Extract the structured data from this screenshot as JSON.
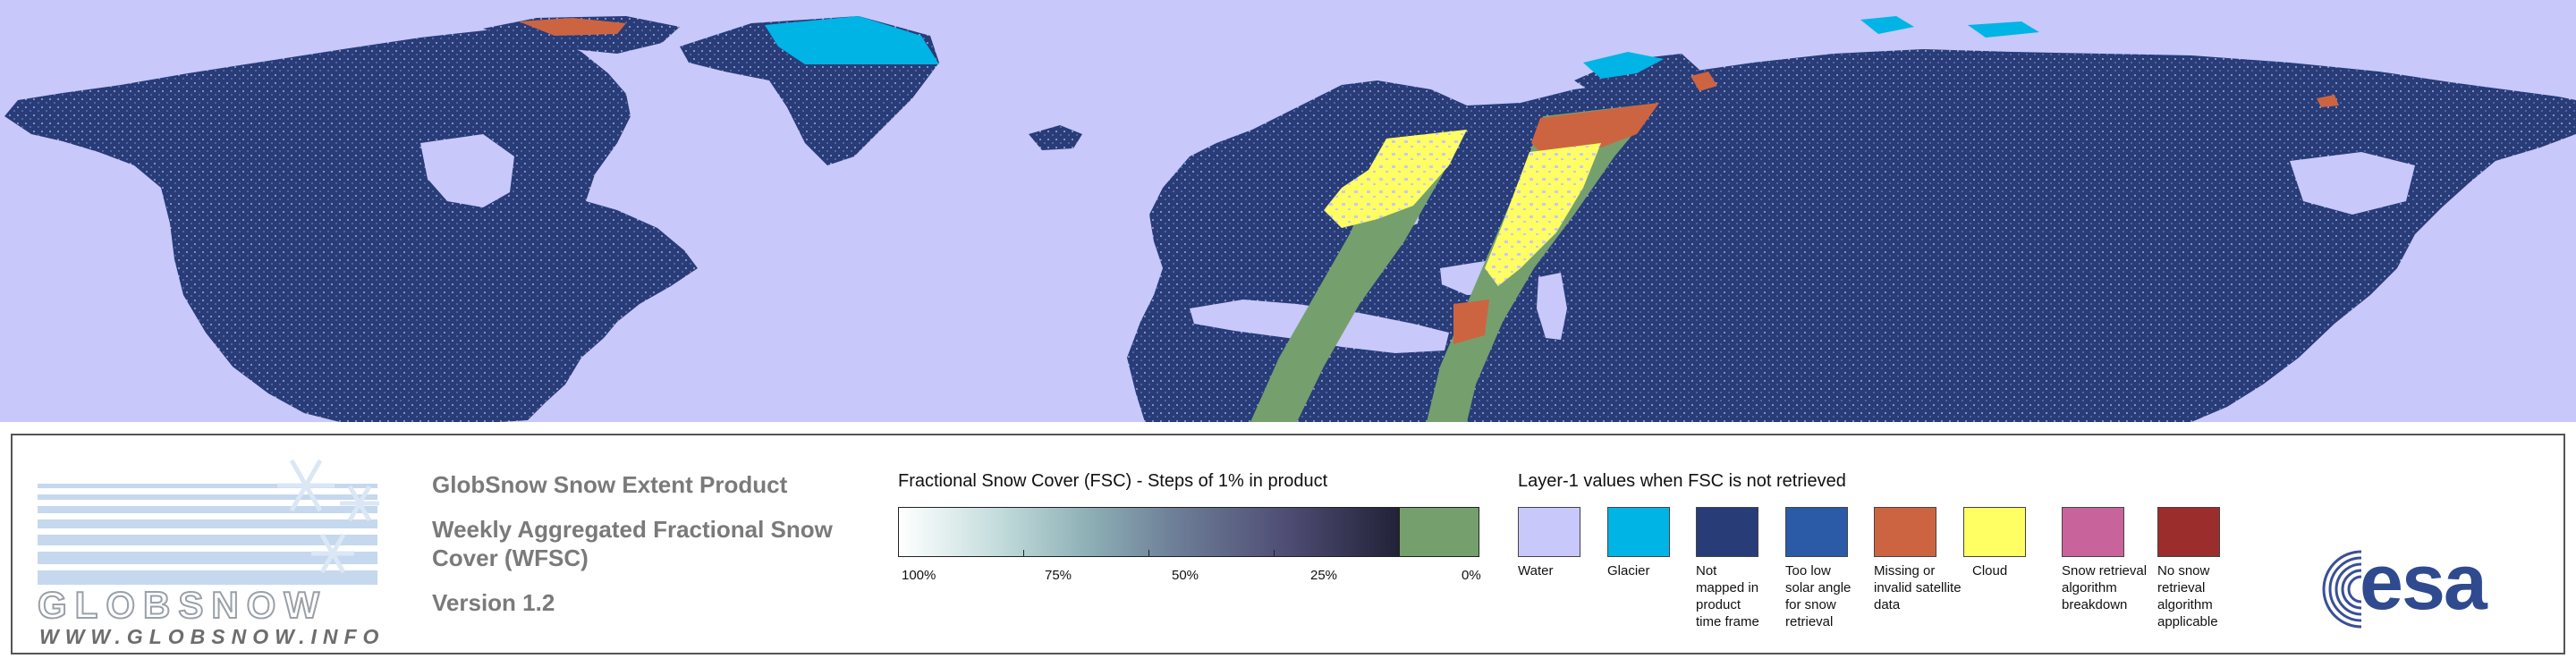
{
  "colors": {
    "water": "#c8c8fa",
    "glacier": "#00b4e6",
    "not_mapped": "#283c78",
    "too_low_solar": "#2b5aa6",
    "missing": "#cd6441",
    "cloud": "#ffff64",
    "breakdown": "#c8649b",
    "no_snow_retrieval": "#9b2d2d",
    "zero_fsc": "#75a06e"
  },
  "logo": {
    "wordmark": "GLOBSNOW",
    "website": "WWW.GLOBSNOW.INFO"
  },
  "product": {
    "title": "GlobSnow Snow Extent Product",
    "subtitle_line1": "Weekly Aggregated Fractional Snow",
    "subtitle_line2": "Cover (WFSC)",
    "version": "Version 1.2"
  },
  "fsc_legend": {
    "title": "Fractional Snow Cover (FSC) - Steps of 1% in product",
    "ticks": [
      "100%",
      "75%",
      "50%",
      "25%",
      "0%"
    ]
  },
  "layer1_legend": {
    "title": "Layer-1 values when FSC is not retrieved",
    "items": [
      {
        "label_lines": [
          "Water"
        ],
        "color": "#c8c8fa"
      },
      {
        "label_lines": [
          "Glacier"
        ],
        "color": "#00b4e6"
      },
      {
        "label_lines": [
          "Not",
          "mapped in",
          "product",
          "time frame"
        ],
        "color": "#283c78"
      },
      {
        "label_lines": [
          "Too low",
          "solar angle",
          "for snow",
          "retrieval"
        ],
        "color": "#2b5aa6"
      },
      {
        "label_lines": [
          "Missing or",
          "invalid satellite",
          "data"
        ],
        "color": "#cd6441"
      },
      {
        "label_lines": [
          "Cloud"
        ],
        "color": "#ffff64"
      },
      {
        "label_lines": [
          "Snow retrieval",
          "algorithm",
          "breakdown"
        ],
        "color": "#c8649b"
      },
      {
        "label_lines": [
          "No snow",
          "retrieval",
          "algorithm",
          "applicable"
        ],
        "color": "#9b2d2d"
      }
    ]
  },
  "esa_logo": {
    "text": "esa"
  }
}
